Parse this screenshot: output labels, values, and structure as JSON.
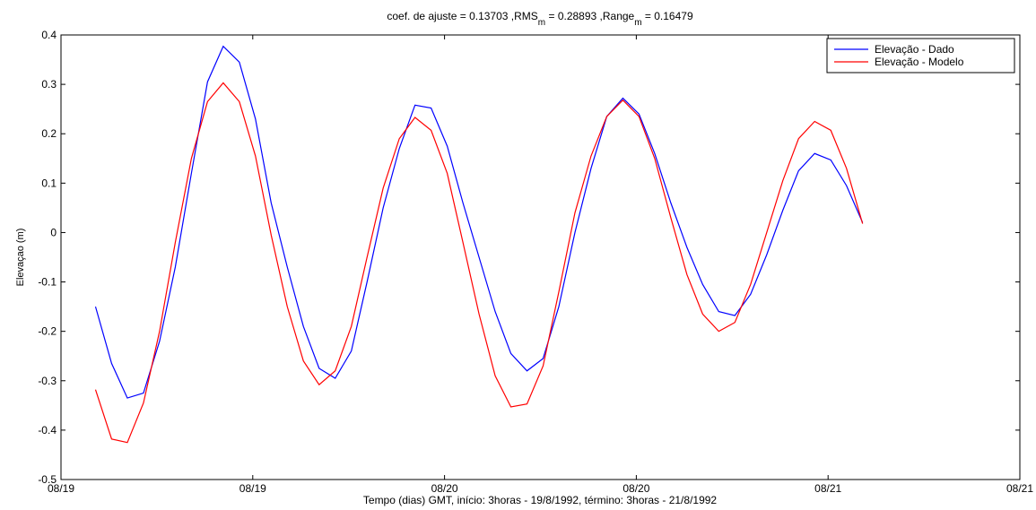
{
  "chart_data": {
    "type": "line",
    "title": [
      "coef. de ajuste = 0.13703 ,RMS",
      "m",
      " = 0.28893 ,Range",
      "m",
      " = 0.16479"
    ],
    "x_label": "Tempo (dias) GMT, início: 3horas - 19/8/1992, término: 3horas - 21/8/1992",
    "y_label": "Elevaçao (m)",
    "xlim": [
      0,
      2.5
    ],
    "xticks": [
      {
        "value": 0,
        "label": "08/19"
      },
      {
        "value": 0.5,
        "label": "08/19"
      },
      {
        "value": 1,
        "label": "08/20"
      },
      {
        "value": 1.5,
        "label": "08/20"
      },
      {
        "value": 2,
        "label": "08/21"
      },
      {
        "value": 2.5,
        "label": "08/21"
      }
    ],
    "ylim": [
      -0.5,
      0.4
    ],
    "yticks": [
      -0.5,
      -0.4,
      -0.3,
      -0.2,
      -0.1,
      0,
      0.1,
      0.2,
      0.3,
      0.4
    ],
    "legend": "top-right",
    "x": [
      0.09,
      0.132,
      0.173,
      0.215,
      0.257,
      0.298,
      0.34,
      0.382,
      0.423,
      0.465,
      0.507,
      0.548,
      0.59,
      0.632,
      0.673,
      0.715,
      0.757,
      0.798,
      0.84,
      0.882,
      0.923,
      0.965,
      1.007,
      1.048,
      1.09,
      1.132,
      1.173,
      1.215,
      1.257,
      1.298,
      1.34,
      1.382,
      1.423,
      1.465,
      1.507,
      1.548,
      1.59,
      1.632,
      1.673,
      1.715,
      1.757,
      1.798,
      1.84,
      1.882,
      1.923,
      1.965,
      2.007,
      2.048,
      2.09
    ],
    "series": [
      {
        "name": "Elevação - Dado",
        "color": "#0000ff",
        "values": [
          -0.15,
          -0.265,
          -0.335,
          -0.325,
          -0.22,
          -0.07,
          0.12,
          0.305,
          0.377,
          0.345,
          0.23,
          0.06,
          -0.07,
          -0.19,
          -0.275,
          -0.295,
          -0.24,
          -0.1,
          0.05,
          0.17,
          0.258,
          0.252,
          0.175,
          0.06,
          -0.05,
          -0.16,
          -0.245,
          -0.28,
          -0.255,
          -0.15,
          0.0,
          0.13,
          0.235,
          0.272,
          0.24,
          0.16,
          0.06,
          -0.03,
          -0.105,
          -0.16,
          -0.168,
          -0.125,
          -0.045,
          0.045,
          0.125,
          0.16,
          0.147,
          0.095,
          0.02
        ]
      },
      {
        "name": "Elevação - Modelo",
        "color": "#ff0000",
        "values": [
          -0.318,
          -0.418,
          -0.425,
          -0.345,
          -0.2,
          -0.02,
          0.15,
          0.265,
          0.303,
          0.265,
          0.155,
          -0.005,
          -0.15,
          -0.26,
          -0.308,
          -0.28,
          -0.19,
          -0.05,
          0.09,
          0.19,
          0.233,
          0.207,
          0.12,
          -0.02,
          -0.165,
          -0.29,
          -0.353,
          -0.347,
          -0.27,
          -0.12,
          0.04,
          0.155,
          0.235,
          0.268,
          0.235,
          0.15,
          0.03,
          -0.085,
          -0.165,
          -0.2,
          -0.182,
          -0.105,
          0.0,
          0.105,
          0.19,
          0.225,
          0.207,
          0.13,
          0.018
        ]
      }
    ]
  }
}
